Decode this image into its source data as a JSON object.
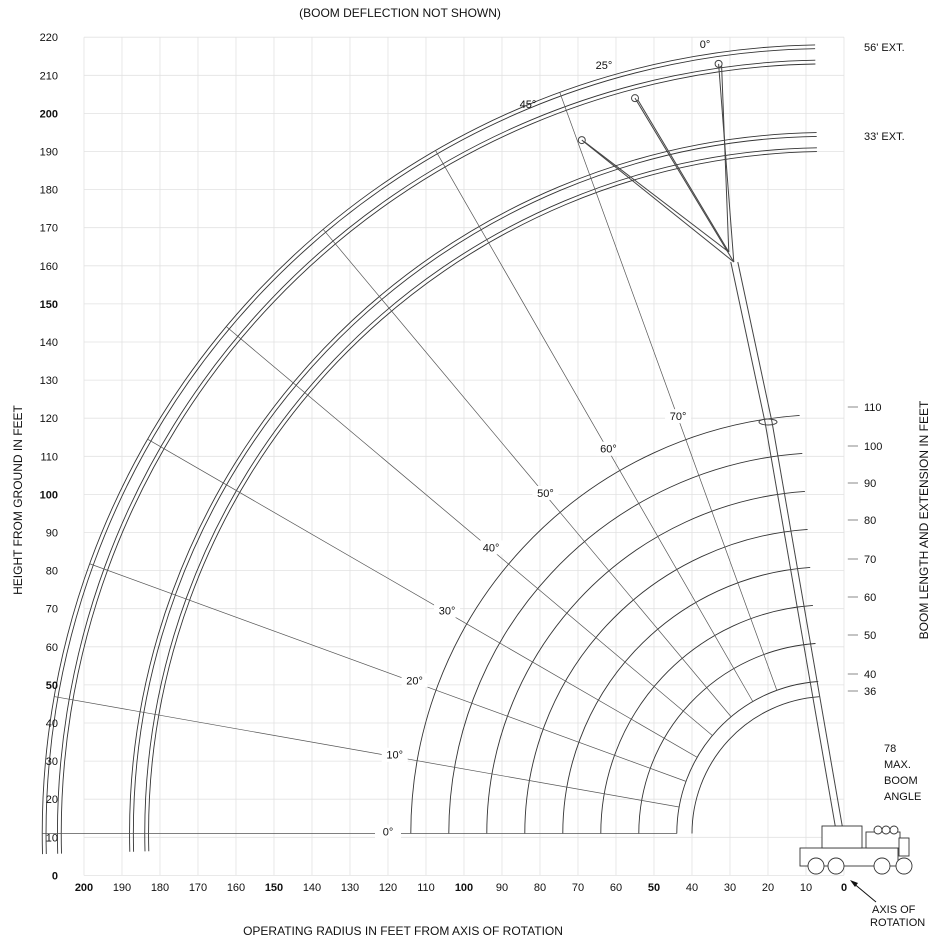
{
  "top_note": "(BOOM DEFLECTION NOT SHOWN)",
  "x_title": "OPERATING RADIUS IN FEET FROM AXIS OF ROTATION",
  "y_title": "HEIGHT FROM GROUND IN FEET",
  "right_title": "BOOM LENGTH AND EXTENSION IN FEET",
  "y_ticks": [
    "0",
    "10",
    "20",
    "30",
    "40",
    "50",
    "60",
    "70",
    "80",
    "90",
    "100",
    "110",
    "120",
    "130",
    "140",
    "150",
    "160",
    "170",
    "180",
    "190",
    "200",
    "210",
    "220"
  ],
  "y_ticks_bold": [
    "0",
    "50",
    "100",
    "150",
    "200"
  ],
  "x_ticks": [
    "200",
    "190",
    "180",
    "170",
    "160",
    "150",
    "140",
    "130",
    "120",
    "110",
    "100",
    "90",
    "80",
    "70",
    "60",
    "50",
    "40",
    "30",
    "20",
    "10",
    "0"
  ],
  "x_ticks_bold": [
    "200",
    "150",
    "100",
    "50",
    "0"
  ],
  "boom_lengths": [
    "36",
    "40",
    "50",
    "60",
    "70",
    "80",
    "90",
    "100",
    "110"
  ],
  "inner_angles": [
    "0°",
    "10°",
    "20°",
    "30°",
    "40°",
    "50°",
    "60°",
    "70°"
  ],
  "extensions": [
    "33' EXT.",
    "56' EXT."
  ],
  "jib_offsets": [
    "0°",
    "25°",
    "45°"
  ],
  "max_angle_note": [
    "78",
    "MAX.",
    "BOOM",
    "ANGLE"
  ],
  "axis_note": [
    "AXIS OF",
    "ROTATION"
  ],
  "chart_data": {
    "type": "range_diagram",
    "xlabel": "OPERATING RADIUS IN FEET FROM AXIS OF ROTATION",
    "ylabel": "HEIGHT FROM GROUND IN FEET",
    "x_range": [
      0,
      200
    ],
    "y_range": [
      0,
      220
    ],
    "boom_pivot": {
      "radius": 4,
      "height": 11
    },
    "boom_length_arcs_ft": [
      36,
      40,
      50,
      60,
      70,
      80,
      90,
      100,
      110
    ],
    "boom_angles_deg": [
      0,
      10,
      20,
      30,
      40,
      50,
      60,
      70
    ],
    "max_boom_angle_deg": 78,
    "extension_arcs": [
      {
        "label": "33' EXT.",
        "length_ft": 183
      },
      {
        "label": "56' EXT.",
        "length_ft": 206
      }
    ],
    "jib_tips": [
      {
        "offset": "0°",
        "radius": 33,
        "height": 213
      },
      {
        "offset": "25°",
        "radius": 55,
        "height": 204
      },
      {
        "offset": "45°",
        "radius": 69,
        "height": 193
      }
    ],
    "grid": true
  }
}
